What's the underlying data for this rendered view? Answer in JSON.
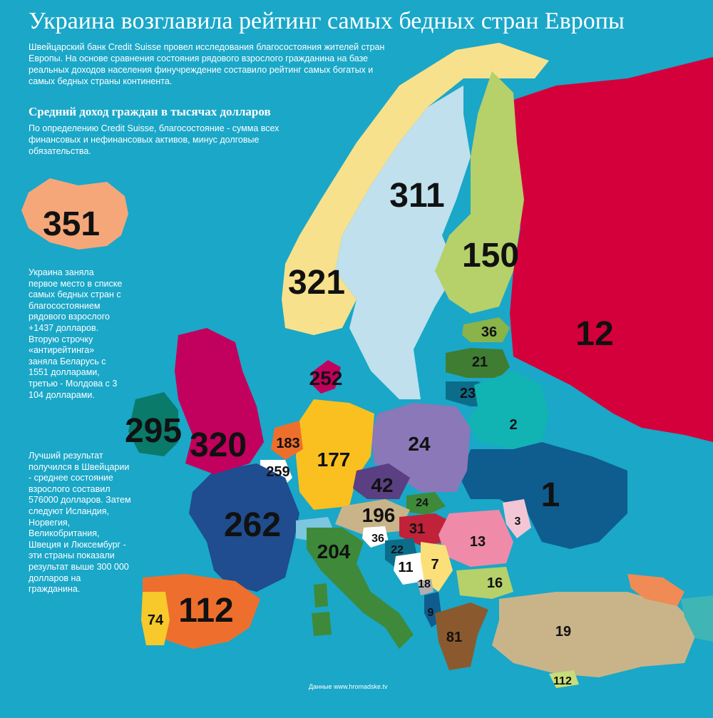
{
  "title": "Украина возглавила рейтинг самых бедных стран Европы",
  "intro": "Швейцарский банк Credit Suisse провел исследования благосостояния жителей стран Европы. На основе сравнения состояния рядового взрослого гражданина на базе реальных доходов населения финучреждение составило рейтинг самых богатых и самых бедных страны континента.",
  "subtitle": "Средний доход граждан в тысячах долларов",
  "definition": "По определению Credit Suisse, благосостояние - сумма всех финансовых и нефинансовых активов, минус долговые обязательства.",
  "side_text_1": "Украина заняла первое место в списке самых бедных стран с благосостоянием рядового взрослого +1437 долларов. Вторую строчку «антирейтинга» заняла Беларусь с 1551 долларами, третью - Молдова с 3 104 долларами.",
  "side_text_2": "Лучший результат получился в Швейцарии - среднее состояние взрослого составил 576000 долларов. Затем следуют Исландия, Норвегия, Великобритания, Швеция и Люксембург - эти страны показали результат выше 300 000 долларов на гражданина.",
  "source": "Данные www.hromadske.tv",
  "colors": {
    "background": "#1aa7c8",
    "iceland": "#f5a77a",
    "norway": "#f7e18c",
    "sweden": "#bfe0ec",
    "finland": "#b6d06a",
    "russia": "#d4003b",
    "estonia": "#8ab34a",
    "latvia": "#3f7d32",
    "lithuania": "#0c6d8a",
    "belarus": "#12b3b3",
    "ukraine": "#0f5c8f",
    "moldova": "#f3c6d6",
    "romania": "#ef8aa9",
    "poland": "#8a78b8",
    "germany": "#f9c020",
    "france": "#1f4d8f",
    "uk": "#c2005e",
    "ireland": "#0a7a6a",
    "spain": "#ee6f2d",
    "portugal": "#f7c92a",
    "italy": "#3e8a3a",
    "turkey": "#c9b48a",
    "greece": "#8a5a2e"
  },
  "chart_data": {
    "type": "map",
    "unit": "тысяч долларов",
    "values": [
      {
        "value": "351",
        "region": "Iceland"
      },
      {
        "value": "321",
        "region": "Norway"
      },
      {
        "value": "311",
        "region": "Sweden"
      },
      {
        "value": "150",
        "region": "Finland"
      },
      {
        "value": "12",
        "region": "Russia"
      },
      {
        "value": "36",
        "region": "Estonia"
      },
      {
        "value": "21",
        "region": "Latvia"
      },
      {
        "value": "23",
        "region": "Lithuania"
      },
      {
        "value": "2",
        "region": "Belarus"
      },
      {
        "value": "1",
        "region": "Ukraine"
      },
      {
        "value": "24",
        "region": "Poland"
      },
      {
        "value": "252",
        "region": "Denmark"
      },
      {
        "value": "295",
        "region": "Ireland"
      },
      {
        "value": "320",
        "region": "United Kingdom"
      },
      {
        "value": "183",
        "region": "Netherlands"
      },
      {
        "value": "259",
        "region": "Belgium"
      },
      {
        "value": "177",
        "region": "Germany"
      },
      {
        "value": "42",
        "region": "Czech Republic"
      },
      {
        "value": "24",
        "region": "Slovakia"
      },
      {
        "value": "196",
        "region": "Austria"
      },
      {
        "value": "31",
        "region": "Hungary"
      },
      {
        "value": "3",
        "region": "Moldova"
      },
      {
        "value": "13",
        "region": "Romania"
      },
      {
        "value": "262",
        "region": "France"
      },
      {
        "value": "36",
        "region": "Slovenia"
      },
      {
        "value": "22",
        "region": "Croatia"
      },
      {
        "value": "204",
        "region": "Italy"
      },
      {
        "value": "11",
        "region": "Bosnia and Herzegovina"
      },
      {
        "value": "7",
        "region": "Serbia"
      },
      {
        "value": "18",
        "region": "Montenegro"
      },
      {
        "value": "9",
        "region": "Albania"
      },
      {
        "value": "16",
        "region": "Bulgaria"
      },
      {
        "value": "81",
        "region": "Greece"
      },
      {
        "value": "19",
        "region": "Turkey"
      },
      {
        "value": "112",
        "region": "Spain"
      },
      {
        "value": "74",
        "region": "Portugal"
      },
      {
        "value": "112",
        "region": "Cyprus"
      }
    ]
  }
}
